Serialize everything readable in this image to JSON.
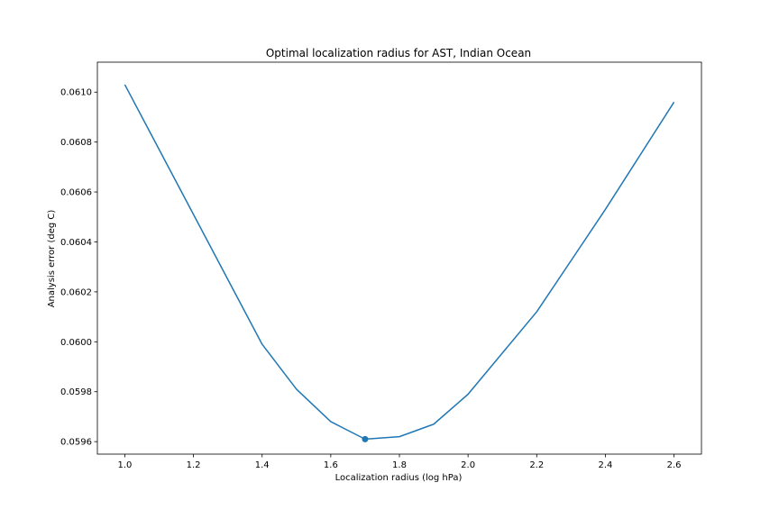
{
  "chart_data": {
    "type": "line",
    "title": "Optimal localization radius for AST, Indian Ocean",
    "xlabel": "Localization radius (log hPa)",
    "ylabel": "Analysis error (deg C)",
    "xlim": [
      0.92,
      2.68
    ],
    "ylim": [
      0.05955,
      0.06112
    ],
    "xticks": [
      1.0,
      1.2,
      1.4,
      1.6,
      1.8,
      2.0,
      2.2,
      2.4,
      2.6
    ],
    "xtick_labels": [
      "1.0",
      "1.2",
      "1.4",
      "1.6",
      "1.8",
      "2.0",
      "2.2",
      "2.4",
      "2.6"
    ],
    "yticks": [
      0.0596,
      0.0598,
      0.06,
      0.0602,
      0.0604,
      0.0606,
      0.0608,
      0.061
    ],
    "ytick_labels": [
      "0.0596",
      "0.0598",
      "0.0600",
      "0.0602",
      "0.0604",
      "0.0606",
      "0.0608",
      "0.0610"
    ],
    "grid": false,
    "color": "#1f77b4",
    "series": [
      {
        "x": [
          1.0,
          1.2,
          1.4,
          1.5,
          1.6,
          1.7,
          1.8,
          1.9,
          2.0,
          2.2,
          2.4,
          2.6
        ],
        "values": [
          0.06103,
          0.06051,
          0.05999,
          0.05981,
          0.05968,
          0.05961,
          0.05962,
          0.05967,
          0.05979,
          0.06012,
          0.06053,
          0.06096
        ]
      }
    ],
    "highlight_point": {
      "x": 1.7,
      "y": 0.05961
    }
  }
}
